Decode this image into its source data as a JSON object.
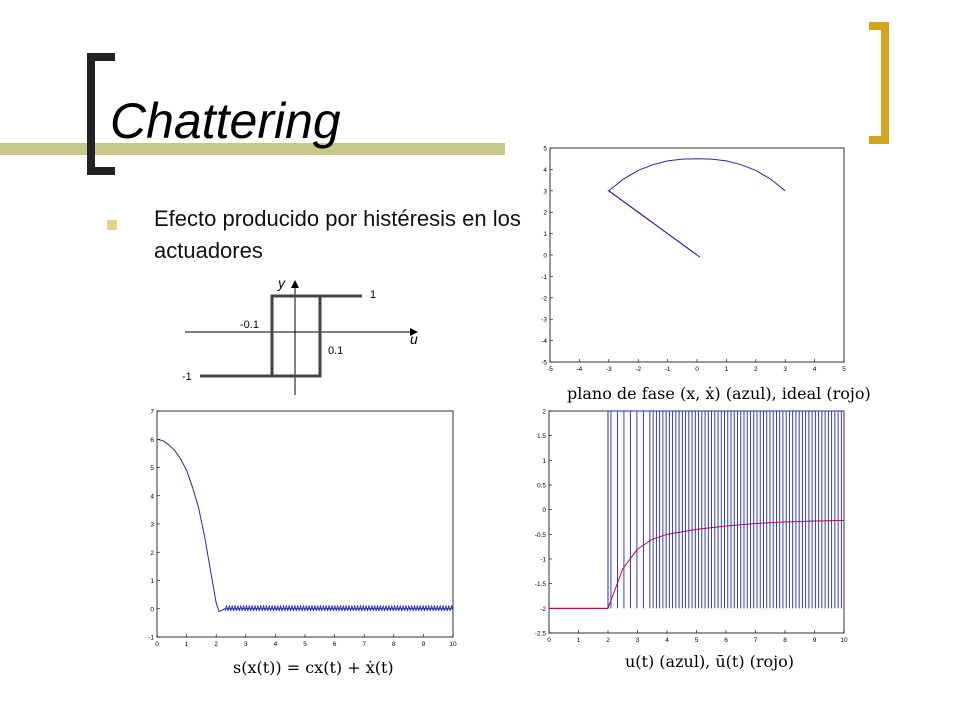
{
  "slide": {
    "title": "Chattering",
    "bullet": "Efecto producido por histéresis en los actuadores",
    "colors": {
      "accent_bar": "#c8c78a",
      "bracket_left": "#222222",
      "bracket_right": "#d3a51b",
      "bullet": "#e2d28a"
    }
  },
  "hysteresis": {
    "y_label": "y",
    "u_label": "u",
    "labels": {
      "top": "1",
      "bottom": "-1",
      "left": "-0.1",
      "right": "0.1"
    }
  },
  "chart_data": [
    {
      "id": "phase-plane",
      "type": "line",
      "xlabel": "plano  de  fase (x, ẋ) (azul), ideal (rojo)",
      "ylabel": "",
      "xlim": [
        -5,
        5
      ],
      "ylim": [
        -5,
        5
      ],
      "xticks": [
        "-5",
        "-4",
        "-3",
        "-2",
        "-1",
        "0",
        "1",
        "2",
        "3",
        "4",
        "5"
      ],
      "yticks": [
        "-5",
        "-4",
        "-3",
        "-2",
        "-1",
        "0",
        "1",
        "2",
        "3",
        "4",
        "5"
      ],
      "series": [
        {
          "name": "azul",
          "color": "#1f2bb0",
          "x": [
            3,
            2.5,
            2,
            1.5,
            1,
            0.5,
            0,
            -0.5,
            -1,
            -1.5,
            -2,
            -2.5,
            -3,
            -2.5,
            -2,
            -1.5,
            -1,
            -0.5,
            0
          ],
          "y": [
            3,
            3.55,
            3.95,
            4.22,
            4.4,
            4.48,
            4.5,
            4.48,
            4.4,
            4.22,
            3.95,
            3.55,
            3,
            2.5,
            2,
            1.5,
            1,
            0.5,
            0
          ]
        },
        {
          "name": "rojo",
          "color": "#d4003a",
          "x": [
            -3,
            -2.5,
            -2,
            -1.5
          ],
          "y": [
            3,
            2.5,
            2,
            1.5
          ]
        }
      ]
    },
    {
      "id": "sliding-surface",
      "type": "line",
      "xlabel": "s(x(t)) = cx(t) + ẋ(t)",
      "ylabel": "",
      "xlim": [
        0,
        10
      ],
      "ylim": [
        -1,
        7
      ],
      "xticks": [
        "0",
        "1",
        "2",
        "3",
        "4",
        "5",
        "6",
        "7",
        "8",
        "9",
        "10"
      ],
      "yticks": [
        "-1",
        "0",
        "1",
        "2",
        "3",
        "4",
        "5",
        "6",
        "7"
      ],
      "series": [
        {
          "name": "s",
          "color": "#1f2bb0",
          "x": [
            0,
            0.2,
            0.4,
            0.6,
            0.8,
            1,
            1.2,
            1.4,
            1.6,
            1.8,
            2,
            2.1,
            2.3,
            2.5,
            3,
            4,
            5,
            6,
            7,
            8,
            9,
            10
          ],
          "y": [
            6,
            5.95,
            5.8,
            5.6,
            5.3,
            4.9,
            4.3,
            3.6,
            2.6,
            1.4,
            0.2,
            -0.1,
            0,
            0,
            0,
            0,
            0,
            0,
            0,
            0,
            0,
            0
          ]
        }
      ]
    },
    {
      "id": "control-signal",
      "type": "line",
      "xlabel": "u(t) (azul), ū(t) (rojo)",
      "ylabel": "",
      "xlim": [
        0,
        10
      ],
      "ylim": [
        -2.5,
        2
      ],
      "xticks": [
        "0",
        "1",
        "2",
        "3",
        "4",
        "5",
        "6",
        "7",
        "8",
        "9",
        "10"
      ],
      "yticks": [
        "-2.5",
        "-2",
        "-1.5",
        "-1",
        "-0.5",
        "0",
        "0.5",
        "1",
        "1.5",
        "2"
      ],
      "series": [
        {
          "name": "u",
          "color": "#1f2bb0",
          "x": [
            0,
            2,
            2,
            10
          ],
          "y": [
            -2,
            -2,
            2,
            2
          ]
        },
        {
          "name": "ū",
          "color": "#d4003a",
          "x": [
            0,
            2,
            2.5,
            3,
            3.5,
            4,
            5,
            6,
            7,
            8,
            9,
            10
          ],
          "y": [
            -2,
            -2,
            -1.2,
            -0.8,
            -0.6,
            -0.5,
            -0.4,
            -0.33,
            -0.28,
            -0.25,
            -0.23,
            -0.22
          ]
        }
      ]
    }
  ]
}
